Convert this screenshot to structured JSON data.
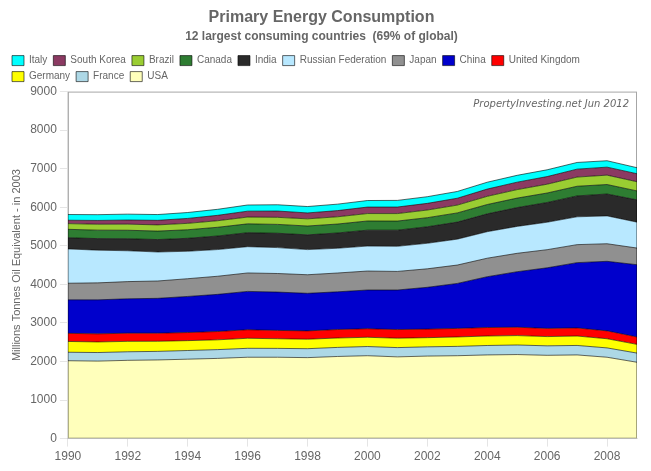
{
  "chart_data": {
    "type": "area",
    "stacked": true,
    "title": "Primary Energy Consumption",
    "subtitle": "12 largest consuming countries  (69% of global)",
    "ylabel": "Millions Tonnes Oil Equivalent - in 2003",
    "annotations": [
      "PropertyInvesting.net Jun 2012"
    ],
    "x": [
      1990,
      1991,
      1992,
      1993,
      1994,
      1995,
      1996,
      1997,
      1998,
      1999,
      2000,
      2001,
      2002,
      2003,
      2004,
      2005,
      2006,
      2007,
      2008,
      2009
    ],
    "series": [
      {
        "name": "USA",
        "color": "#FFFFBB",
        "values": [
          2020,
          2010,
          2030,
          2040,
          2060,
          2080,
          2110,
          2110,
          2100,
          2130,
          2150,
          2120,
          2140,
          2150,
          2170,
          2180,
          2160,
          2170,
          2110,
          1980
        ]
      },
      {
        "name": "France",
        "color": "#ADD8E6",
        "values": [
          220,
          222,
          222,
          222,
          225,
          228,
          232,
          230,
          232,
          235,
          238,
          240,
          240,
          242,
          245,
          248,
          246,
          246,
          242,
          238
        ]
      },
      {
        "name": "Germany",
        "color": "#FFFF00",
        "values": [
          280,
          275,
          270,
          262,
          256,
          254,
          260,
          250,
          246,
          244,
          240,
          244,
          238,
          244,
          246,
          244,
          240,
          244,
          238,
          226
        ]
      },
      {
        "name": "United Kingdom",
        "color": "#FF0000",
        "values": [
          210,
          210,
          212,
          210,
          210,
          215,
          222,
          216,
          216,
          220,
          222,
          224,
          222,
          222,
          220,
          217,
          212,
          210,
          204,
          192
        ]
      },
      {
        "name": "China",
        "color": "#0000CC",
        "values": [
          870,
          882,
          892,
          904,
          936,
          964,
          994,
          994,
          974,
          978,
          1004,
          1026,
          1084,
          1166,
          1318,
          1440,
          1572,
          1694,
          1804,
          1874
        ]
      },
      {
        "name": "Japan",
        "color": "#909090",
        "values": [
          430,
          440,
          446,
          450,
          460,
          470,
          478,
          482,
          482,
          488,
          492,
          482,
          480,
          477,
          480,
          477,
          470,
          467,
          456,
          432
        ]
      },
      {
        "name": "Russian Federation",
        "color": "#B8E8FF",
        "values": [
          890,
          848,
          800,
          752,
          712,
          692,
          682,
          672,
          652,
          642,
          648,
          652,
          662,
          672,
          688,
          698,
          712,
          722,
          722,
          672
        ]
      },
      {
        "name": "India",
        "color": "#2A2A2A",
        "values": [
          290,
          300,
          312,
          322,
          336,
          352,
          362,
          372,
          382,
          396,
          412,
          418,
          428,
          442,
          462,
          488,
          512,
          542,
          568,
          578
        ]
      },
      {
        "name": "Canada",
        "color": "#2E7D32",
        "values": [
          218,
          220,
          220,
          220,
          222,
          226,
          230,
          230,
          230,
          232,
          238,
          236,
          236,
          238,
          242,
          246,
          246,
          250,
          246,
          232
        ]
      },
      {
        "name": "Brazil",
        "color": "#9ACD32",
        "values": [
          148,
          153,
          158,
          161,
          166,
          170,
          176,
          183,
          186,
          188,
          193,
          194,
          198,
          203,
          213,
          220,
          228,
          238,
          243,
          238
        ]
      },
      {
        "name": "South Korea",
        "color": "#8B3A62",
        "values": [
          88,
          98,
          108,
          118,
          128,
          140,
          153,
          163,
          153,
          160,
          168,
          170,
          173,
          178,
          188,
          193,
          198,
          206,
          208,
          208
        ]
      },
      {
        "name": "Italy",
        "color": "#00FFFF",
        "values": [
          148,
          150,
          152,
          150,
          153,
          156,
          160,
          163,
          166,
          168,
          170,
          172,
          173,
          176,
          178,
          178,
          176,
          173,
          166,
          156
        ]
      }
    ],
    "xlim": [
      1990,
      2009
    ],
    "xticks": [
      1990,
      1992,
      1994,
      1996,
      1998,
      2000,
      2002,
      2004,
      2006,
      2008
    ],
    "ylim": [
      0,
      9000
    ],
    "yticks": [
      0,
      1000,
      2000,
      3000,
      4000,
      5000,
      6000,
      7000,
      8000,
      9000
    ],
    "grid": false,
    "legend": "upper left"
  }
}
